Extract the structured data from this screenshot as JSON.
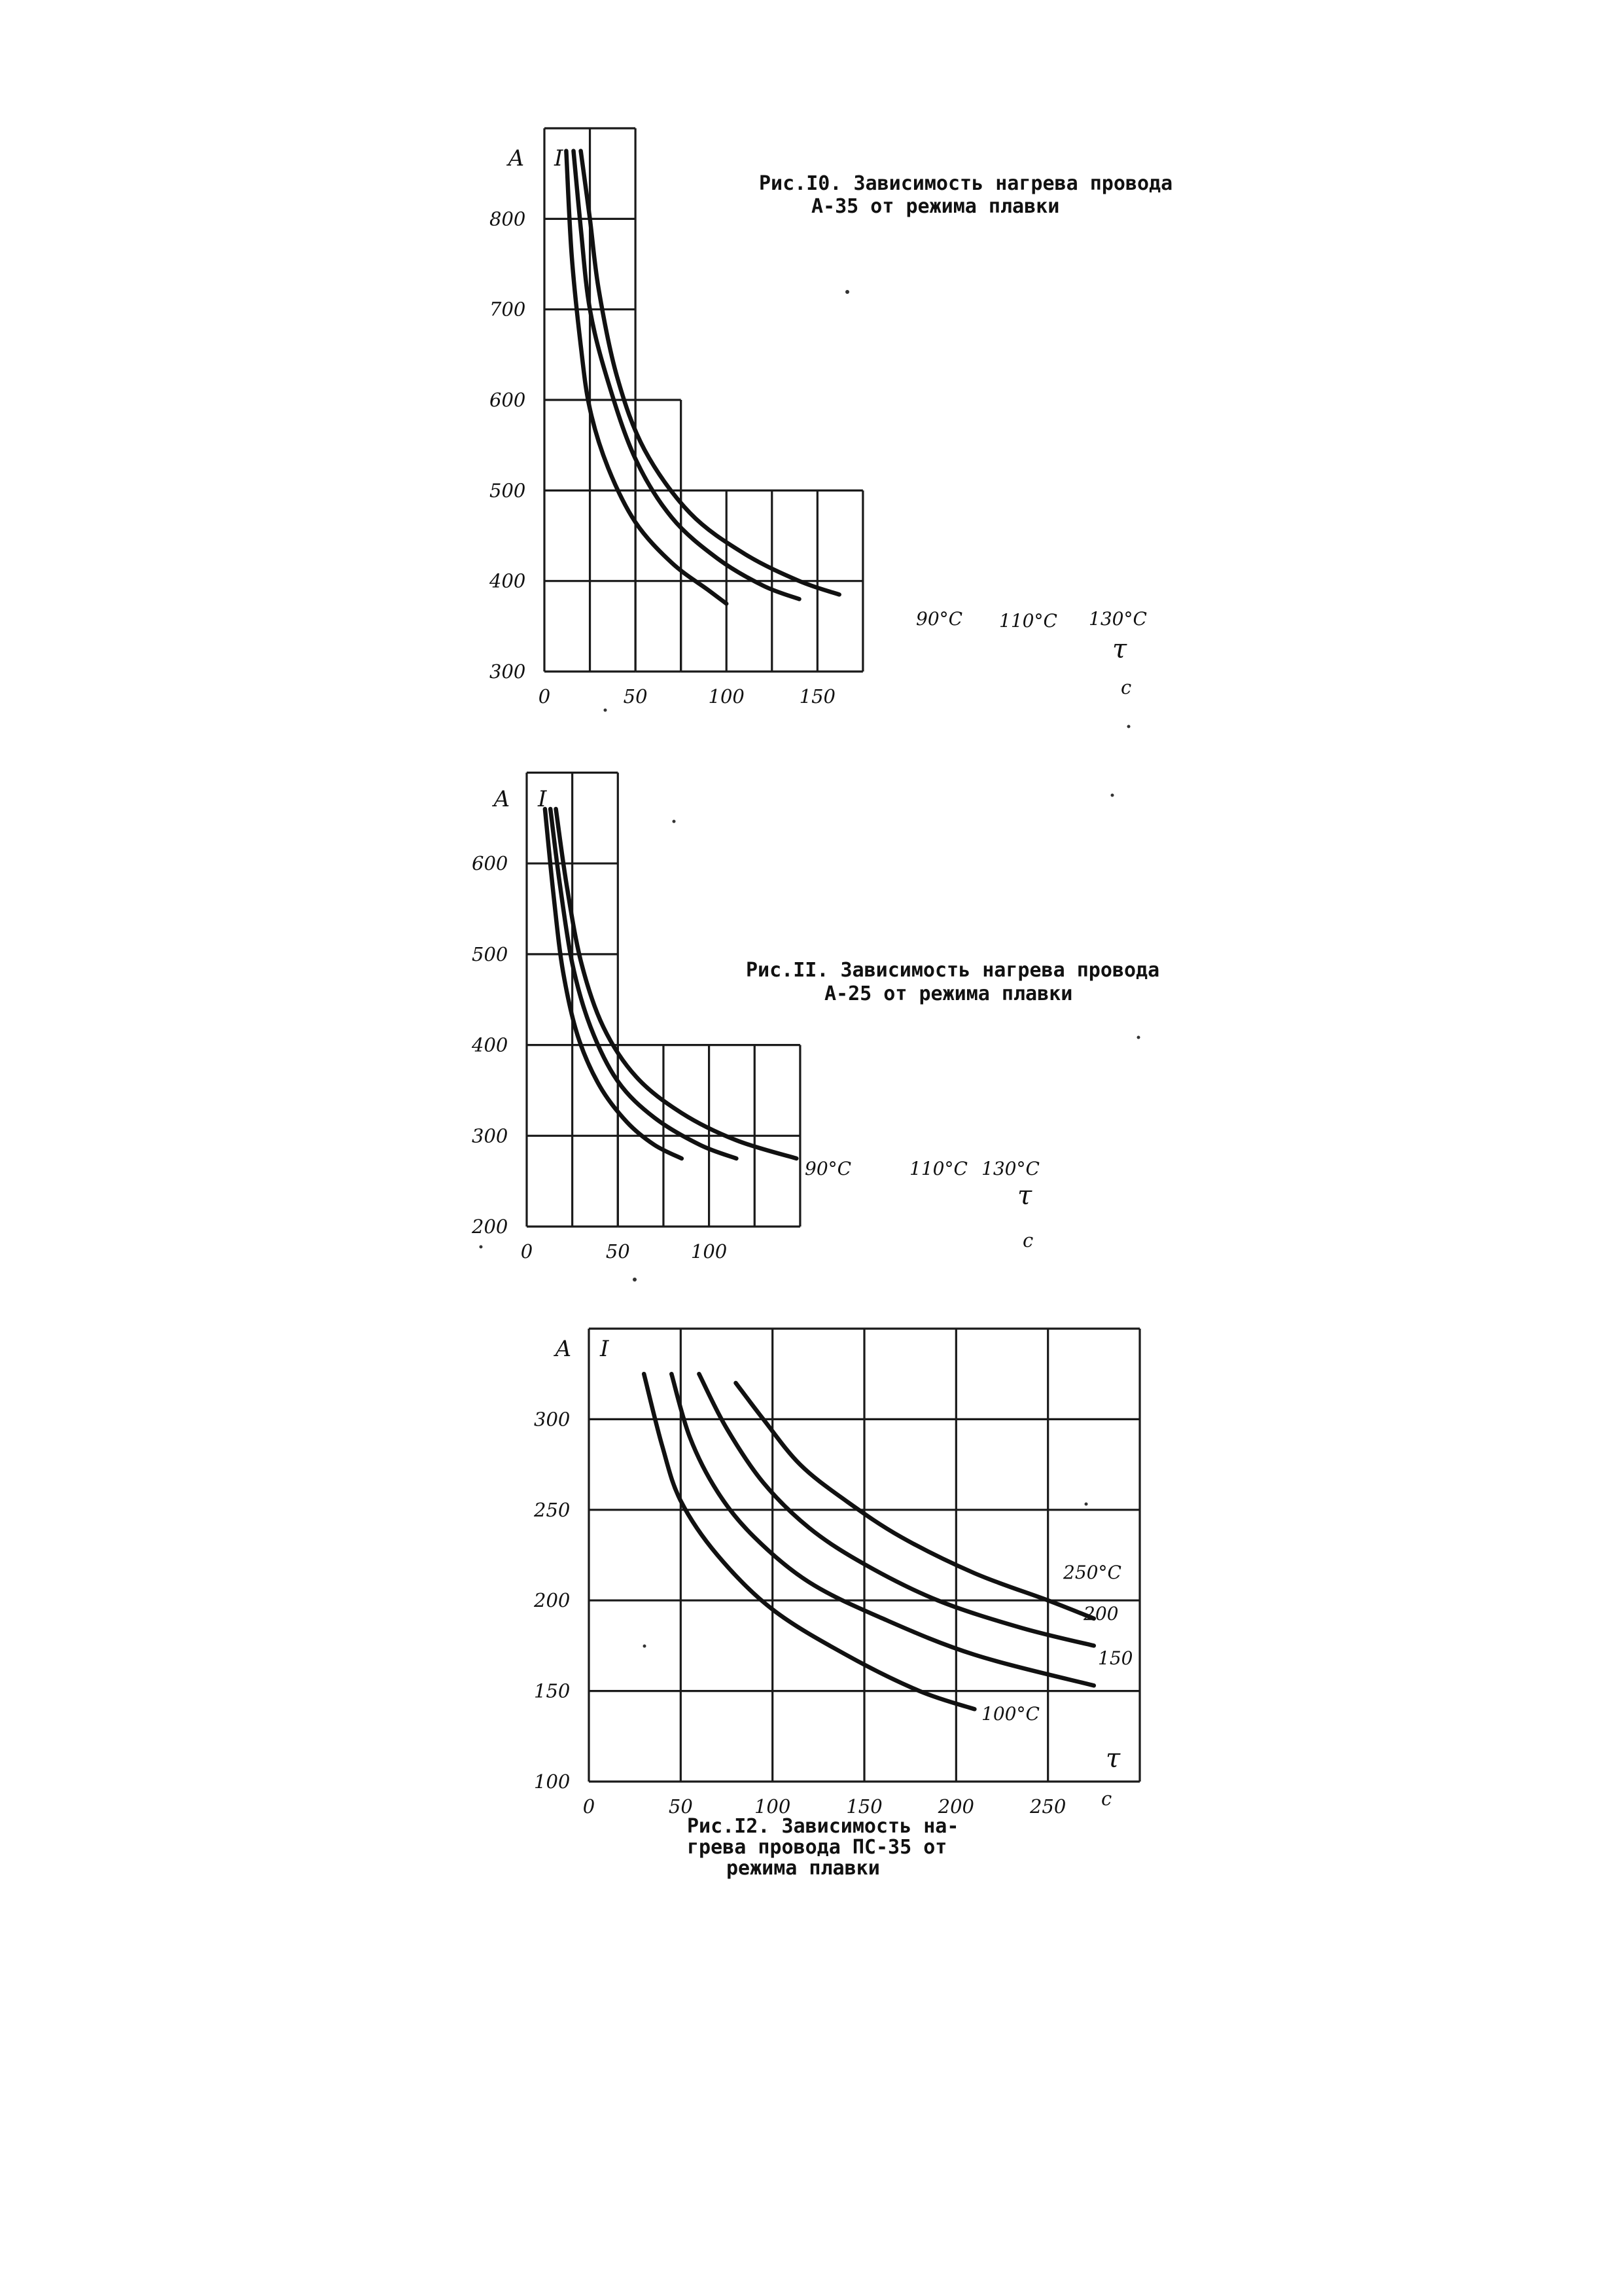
{
  "chart_data": [
    {
      "type": "line",
      "caption": [
        "Рис.I0. Зависимость нагрева провода",
        "А-35 от режима плавки"
      ],
      "xlabel": "τ",
      "x_unit": "с",
      "ylabel": "I",
      "y_unit": "А",
      "xlim": [
        0,
        175
      ],
      "ylim": [
        300,
        900
      ],
      "x_ticks": [
        0,
        50,
        100,
        150
      ],
      "x_tick_labels": [
        "0",
        "50",
        "100",
        "150"
      ],
      "y_ticks": [
        300,
        400,
        500,
        600,
        700,
        800
      ],
      "y_tick_labels": [
        "300",
        "400",
        "500",
        "600",
        "700",
        "800"
      ],
      "grid": true,
      "series": [
        {
          "name": "90°C",
          "x": [
            12,
            15,
            20,
            25,
            35,
            50,
            70,
            90,
            100
          ],
          "y": [
            875,
            760,
            660,
            590,
            525,
            465,
            420,
            390,
            375
          ]
        },
        {
          "name": "110°C",
          "x": [
            16,
            20,
            25,
            35,
            50,
            70,
            95,
            120,
            140
          ],
          "y": [
            875,
            790,
            700,
            620,
            535,
            470,
            425,
            395,
            380
          ]
        },
        {
          "name": "130°C",
          "x": [
            20,
            25,
            30,
            40,
            55,
            80,
            110,
            140,
            162
          ],
          "y": [
            875,
            800,
            720,
            625,
            545,
            475,
            430,
            400,
            385
          ]
        }
      ]
    },
    {
      "type": "line",
      "caption": [
        "Рис.II. Зависимость нагрева провода",
        "А-25 от режима плавки"
      ],
      "xlabel": "τ",
      "x_unit": "с",
      "ylabel": "I",
      "y_unit": "А",
      "xlim": [
        0,
        150
      ],
      "ylim": [
        200,
        700
      ],
      "x_ticks": [
        0,
        50,
        100
      ],
      "x_tick_labels": [
        "0",
        "50",
        "100"
      ],
      "y_ticks": [
        200,
        300,
        400,
        500,
        600
      ],
      "y_tick_labels": [
        "200",
        "300",
        "400",
        "500",
        "600"
      ],
      "grid": true,
      "series": [
        {
          "name": "90°C",
          "x": [
            10,
            15,
            20,
            28,
            40,
            55,
            70,
            85
          ],
          "y": [
            660,
            560,
            480,
            410,
            355,
            315,
            290,
            275
          ]
        },
        {
          "name": "110°C",
          "x": [
            13,
            18,
            25,
            35,
            50,
            70,
            95,
            115
          ],
          "y": [
            660,
            580,
            490,
            420,
            360,
            320,
            290,
            275
          ]
        },
        {
          "name": "130°C",
          "x": [
            16,
            22,
            30,
            42,
            60,
            85,
            115,
            148
          ],
          "y": [
            660,
            575,
            490,
            420,
            365,
            325,
            295,
            275
          ]
        }
      ]
    },
    {
      "type": "line",
      "caption": [
        "Рис.I2. Зависимость на-",
        "грева провода ПС-35 от",
        "режима плавки"
      ],
      "xlabel": "τ",
      "x_unit": "с",
      "ylabel": "I",
      "y_unit": "А",
      "xlim": [
        0,
        300
      ],
      "ylim": [
        100,
        350
      ],
      "x_ticks": [
        0,
        50,
        100,
        150,
        200,
        250
      ],
      "x_tick_labels": [
        "0",
        "50",
        "100",
        "150",
        "200",
        "250"
      ],
      "y_ticks": [
        100,
        150,
        200,
        250,
        300
      ],
      "y_tick_labels": [
        "100",
        "150",
        "200",
        "250",
        "300"
      ],
      "grid": true,
      "series": [
        {
          "name": "100°C",
          "x": [
            30,
            40,
            50,
            70,
            100,
            140,
            180,
            210
          ],
          "y": [
            325,
            285,
            255,
            225,
            195,
            170,
            150,
            140
          ]
        },
        {
          "name": "150",
          "x": [
            45,
            55,
            70,
            90,
            120,
            160,
            210,
            275
          ],
          "y": [
            325,
            290,
            260,
            235,
            210,
            190,
            170,
            153
          ]
        },
        {
          "name": "200",
          "x": [
            60,
            75,
            95,
            120,
            150,
            190,
            235,
            275
          ],
          "y": [
            325,
            295,
            265,
            240,
            220,
            200,
            185,
            175
          ]
        },
        {
          "name": "250°C",
          "x": [
            80,
            95,
            115,
            140,
            170,
            210,
            250,
            275
          ],
          "y": [
            320,
            300,
            275,
            255,
            235,
            215,
            200,
            190
          ]
        }
      ]
    }
  ]
}
